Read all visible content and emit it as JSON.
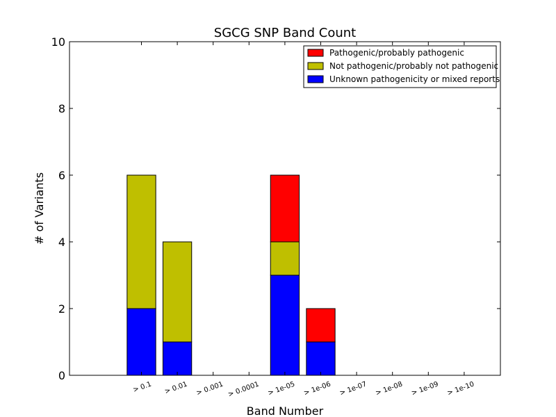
{
  "chart_data": {
    "type": "bar",
    "stacked": true,
    "title": "SGCG SNP Band Count",
    "xlabel": "Band Number",
    "ylabel": "# of Variants",
    "ylim": [
      0,
      10
    ],
    "yticks": [
      0,
      2,
      4,
      6,
      8,
      10
    ],
    "categories": [
      "> 0.1",
      "> 0.01",
      "> 0.001",
      "> 0.0001",
      "> 1e-05",
      "> 1e-06",
      "> 1e-07",
      "> 1e-08",
      "> 1e-09",
      "> 1e-10"
    ],
    "series": [
      {
        "name": "Unknown pathogenicity or mixed reports",
        "color": "#0000ff",
        "values": [
          2,
          1,
          0,
          0,
          3,
          1,
          0,
          0,
          0,
          0
        ]
      },
      {
        "name": "Not pathogenic/probably not pathogenic",
        "color": "#bfbf00",
        "values": [
          4,
          3,
          0,
          0,
          1,
          0,
          0,
          0,
          0,
          0
        ]
      },
      {
        "name": "Pathogenic/probably pathogenic",
        "color": "#ff0000",
        "values": [
          0,
          0,
          0,
          0,
          2,
          1,
          0,
          0,
          0,
          0
        ]
      }
    ],
    "legend": {
      "position": "top-right",
      "order": [
        "Pathogenic/probably pathogenic",
        "Not pathogenic/probably not pathogenic",
        "Unknown pathogenicity or mixed reports"
      ]
    },
    "grid": false
  }
}
